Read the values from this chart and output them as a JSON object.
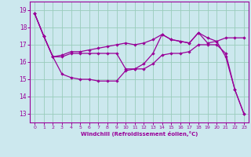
{
  "xlabel": "Windchill (Refroidissement éolien,°C)",
  "background_color": "#cce8ee",
  "line_color": "#990099",
  "grid_color": "#99ccbb",
  "xlim": [
    -0.5,
    23.5
  ],
  "ylim": [
    12.5,
    19.5
  ],
  "yticks": [
    13,
    14,
    15,
    16,
    17,
    18,
    19
  ],
  "xticks": [
    0,
    1,
    2,
    3,
    4,
    5,
    6,
    7,
    8,
    9,
    10,
    11,
    12,
    13,
    14,
    15,
    16,
    17,
    18,
    19,
    20,
    21,
    22,
    23
  ],
  "line1_x": [
    0,
    1,
    2,
    3,
    4,
    5,
    6,
    7,
    8,
    9,
    10,
    11,
    12,
    13,
    14,
    15,
    16,
    17,
    18,
    19,
    20,
    21,
    22,
    23
  ],
  "line1_y": [
    18.8,
    17.5,
    16.3,
    16.4,
    16.6,
    16.6,
    16.7,
    16.8,
    16.9,
    17.0,
    17.1,
    17.0,
    17.1,
    17.3,
    17.6,
    17.3,
    17.2,
    17.1,
    17.7,
    17.4,
    17.2,
    17.4,
    17.4,
    17.4
  ],
  "line2_x": [
    0,
    1,
    2,
    3,
    4,
    5,
    6,
    7,
    8,
    9,
    10,
    11,
    12,
    13,
    14,
    15,
    16,
    17,
    18,
    19,
    20,
    21,
    22,
    23
  ],
  "line2_y": [
    18.8,
    17.5,
    16.3,
    16.3,
    16.5,
    16.5,
    16.5,
    16.5,
    16.5,
    16.5,
    15.6,
    15.6,
    15.9,
    16.5,
    17.6,
    17.3,
    17.2,
    17.1,
    17.7,
    17.1,
    17.2,
    16.3,
    14.4,
    13.0
  ],
  "line3_x": [
    0,
    1,
    2,
    3,
    4,
    5,
    6,
    7,
    8,
    9,
    10,
    11,
    12,
    13,
    14,
    15,
    16,
    17,
    18,
    19,
    20,
    21,
    22,
    23
  ],
  "line3_y": [
    18.8,
    17.5,
    16.3,
    15.3,
    15.1,
    15.0,
    15.0,
    14.9,
    14.9,
    14.9,
    15.5,
    15.6,
    15.6,
    15.9,
    16.4,
    16.5,
    16.5,
    16.6,
    17.0,
    17.0,
    17.0,
    16.5,
    14.4,
    13.0
  ]
}
